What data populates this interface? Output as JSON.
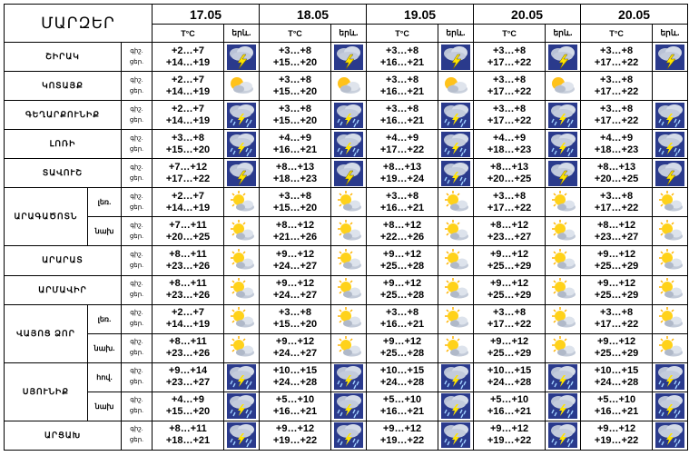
{
  "header": {
    "title": "ՄԱՐԶԵՐ",
    "days": [
      "17.05",
      "18.05",
      "19.05",
      "20.05",
      "20.05"
    ],
    "temp_col": "T°C",
    "icon_col": "երև.",
    "night_label": "գիշ.",
    "day_label": "ցեր."
  },
  "rows": [
    {
      "region": "ՇԻՐԱԿ",
      "sub": "",
      "span": 1,
      "night_label": "գիշ.",
      "day_label": "ցեր.",
      "cells": [
        {
          "night": "+2…+7",
          "day": "+14…+19",
          "icon": "thunderstorm-icon"
        },
        {
          "night": "+3…+8",
          "day": "+15…+20",
          "icon": "thunderstorm-icon"
        },
        {
          "night": "+3…+8",
          "day": "+16…+21",
          "icon": "thunderstorm-icon"
        },
        {
          "night": "+3…+8",
          "day": "+17…+22",
          "icon": "thunderstorm-icon"
        },
        {
          "night": "+3…+8",
          "day": "+17…+22",
          "icon": "thunderstorm-icon"
        }
      ]
    },
    {
      "region": "ԿՈՏԱՅՔ",
      "sub": "",
      "span": 1,
      "night_label": "գիշ.",
      "day_label": "ցեր.",
      "cells": [
        {
          "night": "+2…+7",
          "day": "+14…+19",
          "icon": "partly-cloudy-icon"
        },
        {
          "night": "+3…+8",
          "day": "+15…+20",
          "icon": "partly-cloudy-icon"
        },
        {
          "night": "+3…+8",
          "day": "+16…+21",
          "icon": "partly-cloudy-icon"
        },
        {
          "night": "+3…+8",
          "day": "+17…+22",
          "icon": "partly-cloudy-icon"
        },
        {
          "night": "+3…+8",
          "day": "+17…+22",
          "icon": ""
        }
      ]
    },
    {
      "region": "ԳԵՂԱՐՔՈՒՆԻՔ",
      "sub": "",
      "span": 1,
      "night_label": "գիշ.",
      "day_label": "ցեր.",
      "cells": [
        {
          "night": "+2…+7",
          "day": "+14…+19",
          "icon": "storm-rain-icon"
        },
        {
          "night": "+3…+8",
          "day": "+15…+20",
          "icon": "storm-rain-icon"
        },
        {
          "night": "+3…+8",
          "day": "+16…+21",
          "icon": "storm-rain-icon"
        },
        {
          "night": "+3…+8",
          "day": "+17…+22",
          "icon": "storm-rain-icon"
        },
        {
          "night": "+3…+8",
          "day": "+17…+22",
          "icon": "storm-rain-icon"
        }
      ]
    },
    {
      "region": "ԼՈՌԻ",
      "sub": "",
      "span": 1,
      "night_label": "գիշ.",
      "day_label": "ցեր.",
      "cells": [
        {
          "night": "+3…+8",
          "day": "+15…+20",
          "icon": "storm-rain-icon"
        },
        {
          "night": "+4…+9",
          "day": "+16…+21",
          "icon": "storm-rain-icon"
        },
        {
          "night": "+4…+9",
          "day": "+17…+22",
          "icon": "storm-rain-icon"
        },
        {
          "night": "+4…+9",
          "day": "+18…+23",
          "icon": "storm-rain-icon"
        },
        {
          "night": "+4…+9",
          "day": "+18…+23",
          "icon": "storm-rain-icon"
        }
      ]
    },
    {
      "region": "ՏԱՎՈՒՇ",
      "sub": "",
      "span": 1,
      "night_label": "գիշ.",
      "day_label": "ցեր.",
      "cells": [
        {
          "night": "+7…+12",
          "day": "+17…+22",
          "icon": "thunderstorm-icon"
        },
        {
          "night": "+8…+13",
          "day": "+18…+23",
          "icon": "thunderstorm-icon"
        },
        {
          "night": "+8…+13",
          "day": "+19…+24",
          "icon": "storm-rain-icon"
        },
        {
          "night": "+8…+13",
          "day": "+20…+25",
          "icon": "thunderstorm-icon"
        },
        {
          "night": "+8…+13",
          "day": "+20…+25",
          "icon": "thunderstorm-icon"
        }
      ]
    },
    {
      "region": "ԱՐԱԳԱԾՈՏՆ",
      "sub": "լեռ.",
      "span": 2,
      "night_label": "գիշ.",
      "day_label": "ցեր.",
      "cells": [
        {
          "night": "+2…+7",
          "day": "+14…+19",
          "icon": "sun-cloud-icon"
        },
        {
          "night": "+3…+8",
          "day": "+15…+20",
          "icon": "sun-cloud-icon"
        },
        {
          "night": "+3…+8",
          "day": "+16…+21",
          "icon": "sun-cloud-icon"
        },
        {
          "night": "+3…+8",
          "day": "+17…+22",
          "icon": "sun-cloud-icon"
        },
        {
          "night": "+3…+8",
          "day": "+17…+22",
          "icon": "sun-cloud-icon"
        }
      ]
    },
    {
      "region": "",
      "sub": "նախ",
      "span": 0,
      "night_label": "գիշ.",
      "day_label": "ցեր.",
      "cells": [
        {
          "night": "+7…+11",
          "day": "+20…+25",
          "icon": "sun-cloud-icon"
        },
        {
          "night": "+8…+12",
          "day": "+21…+26",
          "icon": "sun-cloud-icon"
        },
        {
          "night": "+8…+12",
          "day": "+22…+26",
          "icon": "sun-cloud-icon"
        },
        {
          "night": "+8…+12",
          "day": "+23…+27",
          "icon": "sun-cloud-icon"
        },
        {
          "night": "+8…+12",
          "day": "+23…+27",
          "icon": "sun-cloud-icon"
        }
      ]
    },
    {
      "region": "ԱՐԱՐԱՏ",
      "sub": "",
      "span": 1,
      "night_label": "գիշ.",
      "day_label": "ցեր.",
      "cells": [
        {
          "night": "+8…+11",
          "day": "+23…+26",
          "icon": "sun-cloud-icon"
        },
        {
          "night": "+9…+12",
          "day": "+24…+27",
          "icon": "sun-cloud-icon"
        },
        {
          "night": "+9…+12",
          "day": "+25…+28",
          "icon": "sun-cloud-icon"
        },
        {
          "night": "+9…+12",
          "day": "+25…+29",
          "icon": "sun-cloud-icon"
        },
        {
          "night": "+9…+12",
          "day": "+25…+29",
          "icon": "sun-cloud-icon"
        }
      ]
    },
    {
      "region": "ԱՐՄԱՎԻՐ",
      "sub": "",
      "span": 1,
      "night_label": "գիշ.",
      "day_label": "ցեր.",
      "cells": [
        {
          "night": "+8…+11",
          "day": "+23…+26",
          "icon": "sun-cloud-icon"
        },
        {
          "night": "+9…+12",
          "day": "+24…+27",
          "icon": "sun-cloud-icon"
        },
        {
          "night": "+9…+12",
          "day": "+25…+28",
          "icon": "sun-cloud-icon"
        },
        {
          "night": "+9…+12",
          "day": "+25…+29",
          "icon": "sun-cloud-icon"
        },
        {
          "night": "+9…+12",
          "day": "+25…+29",
          "icon": "sun-cloud-icon"
        }
      ]
    },
    {
      "region": "ՎԱՅՈՑ ՁՈՐ",
      "sub": "լեռ.",
      "span": 2,
      "night_label": "գիշ.",
      "day_label": "ցեր.",
      "cells": [
        {
          "night": "+2…+7",
          "day": "+14…+19",
          "icon": "sun-cloud-icon"
        },
        {
          "night": "+3…+8",
          "day": "+15…+20",
          "icon": "sun-cloud-icon"
        },
        {
          "night": "+3…+8",
          "day": "+16…+21",
          "icon": "sun-cloud-icon"
        },
        {
          "night": "+3…+8",
          "day": "+17…+22",
          "icon": "sun-cloud-icon"
        },
        {
          "night": "+3…+8",
          "day": "+17…+22",
          "icon": "sun-cloud-icon"
        }
      ]
    },
    {
      "region": "",
      "sub": "նախ.",
      "span": 0,
      "night_label": "գիշ.",
      "day_label": "ցեր.",
      "cells": [
        {
          "night": "+8…+11",
          "day": "+23…+26",
          "icon": "sun-cloud-icon"
        },
        {
          "night": "+9…+12",
          "day": "+24…+27",
          "icon": "sun-cloud-icon"
        },
        {
          "night": "+9…+12",
          "day": "+25…+28",
          "icon": "sun-cloud-icon"
        },
        {
          "night": "+9…+12",
          "day": "+25…+29",
          "icon": "sun-cloud-icon"
        },
        {
          "night": "+9…+12",
          "day": "+25…+29",
          "icon": "sun-cloud-icon"
        }
      ]
    },
    {
      "region": "ՍՅՈՒՆԻՔ",
      "sub": "հով.",
      "span": 2,
      "night_label": "գիշ.",
      "day_label": "ցեր.",
      "cells": [
        {
          "night": "+9…+14",
          "day": "+23…+27",
          "icon": "storm-rain-icon"
        },
        {
          "night": "+10…+15",
          "day": "+24…+28",
          "icon": "storm-rain-icon"
        },
        {
          "night": "+10…+15",
          "day": "+24…+28",
          "icon": "storm-rain-icon"
        },
        {
          "night": "+10…+15",
          "day": "+24…+28",
          "icon": "storm-rain-icon"
        },
        {
          "night": "+10…+15",
          "day": "+24…+28",
          "icon": "storm-rain-icon"
        }
      ]
    },
    {
      "region": "",
      "sub": "նախ",
      "span": 0,
      "night_label": "գիշ.",
      "day_label": "ցեր.",
      "cells": [
        {
          "night": "+4…+9",
          "day": "+15…+20",
          "icon": "storm-rain-icon"
        },
        {
          "night": "+5…+10",
          "day": "+16…+21",
          "icon": "storm-rain-icon"
        },
        {
          "night": "+5…+10",
          "day": "+16…+21",
          "icon": "storm-rain-icon"
        },
        {
          "night": "+5…+10",
          "day": "+16…+21",
          "icon": "storm-rain-icon"
        },
        {
          "night": "+5…+10",
          "day": "+16…+21",
          "icon": "storm-rain-icon"
        }
      ]
    },
    {
      "region": "ԱՐՑԱԽ",
      "sub": "",
      "span": 1,
      "night_label": "գիշ.",
      "day_label": "ցեր.",
      "cells": [
        {
          "night": "+8…+11",
          "day": "+18…+21",
          "icon": "storm-rain-icon"
        },
        {
          "night": "+9…+12",
          "day": "+19…+22",
          "icon": "storm-rain-icon"
        },
        {
          "night": "+9…+12",
          "day": "+19…+22",
          "icon": "storm-rain-icon"
        },
        {
          "night": "+9…+12",
          "day": "+19…+22",
          "icon": "storm-rain-icon"
        },
        {
          "night": "+9…+12",
          "day": "+19…+22",
          "icon": "storm-rain-icon"
        }
      ]
    }
  ]
}
